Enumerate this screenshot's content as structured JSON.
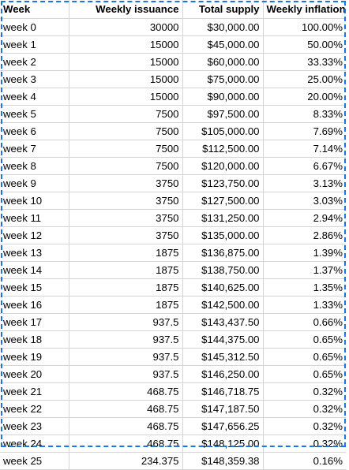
{
  "sheet": {
    "headers": [
      "Week",
      "Weekly issuance",
      "Total supply",
      "Weekly inflation"
    ],
    "rows": [
      [
        "week 0",
        "30000",
        "$30,000.00",
        "100.00%"
      ],
      [
        "week 1",
        "15000",
        "$45,000.00",
        "50.00%"
      ],
      [
        "week 2",
        "15000",
        "$60,000.00",
        "33.33%"
      ],
      [
        "week 3",
        "15000",
        "$75,000.00",
        "25.00%"
      ],
      [
        "week 4",
        "15000",
        "$90,000.00",
        "20.00%"
      ],
      [
        "week 5",
        "7500",
        "$97,500.00",
        "8.33%"
      ],
      [
        "week 6",
        "7500",
        "$105,000.00",
        "7.69%"
      ],
      [
        "week 7",
        "7500",
        "$112,500.00",
        "7.14%"
      ],
      [
        "week 8",
        "7500",
        "$120,000.00",
        "6.67%"
      ],
      [
        "week 9",
        "3750",
        "$123,750.00",
        "3.13%"
      ],
      [
        "week 10",
        "3750",
        "$127,500.00",
        "3.03%"
      ],
      [
        "week 11",
        "3750",
        "$131,250.00",
        "2.94%"
      ],
      [
        "week 12",
        "3750",
        "$135,000.00",
        "2.86%"
      ],
      [
        "week 13",
        "1875",
        "$136,875.00",
        "1.39%"
      ],
      [
        "week 14",
        "1875",
        "$138,750.00",
        "1.37%"
      ],
      [
        "week 15",
        "1875",
        "$140,625.00",
        "1.35%"
      ],
      [
        "week 16",
        "1875",
        "$142,500.00",
        "1.33%"
      ],
      [
        "week 17",
        "937.5",
        "$143,437.50",
        "0.66%"
      ],
      [
        "week 18",
        "937.5",
        "$144,375.00",
        "0.65%"
      ],
      [
        "week 19",
        "937.5",
        "$145,312.50",
        "0.65%"
      ],
      [
        "week 20",
        "937.5",
        "$146,250.00",
        "0.65%"
      ],
      [
        "week 21",
        "468.75",
        "$146,718.75",
        "0.32%"
      ],
      [
        "week 22",
        "468.75",
        "$147,187.50",
        "0.32%"
      ],
      [
        "week 23",
        "468.75",
        "$147,656.25",
        "0.32%"
      ],
      [
        "week 24",
        "468.75",
        "$148,125.00",
        "0.32%"
      ],
      [
        "week 25",
        "234.375",
        "$148,359.38",
        "0.16%"
      ]
    ]
  },
  "colors": {
    "gridline": "#d4d4d4",
    "selection_border": "#1a73e8"
  }
}
